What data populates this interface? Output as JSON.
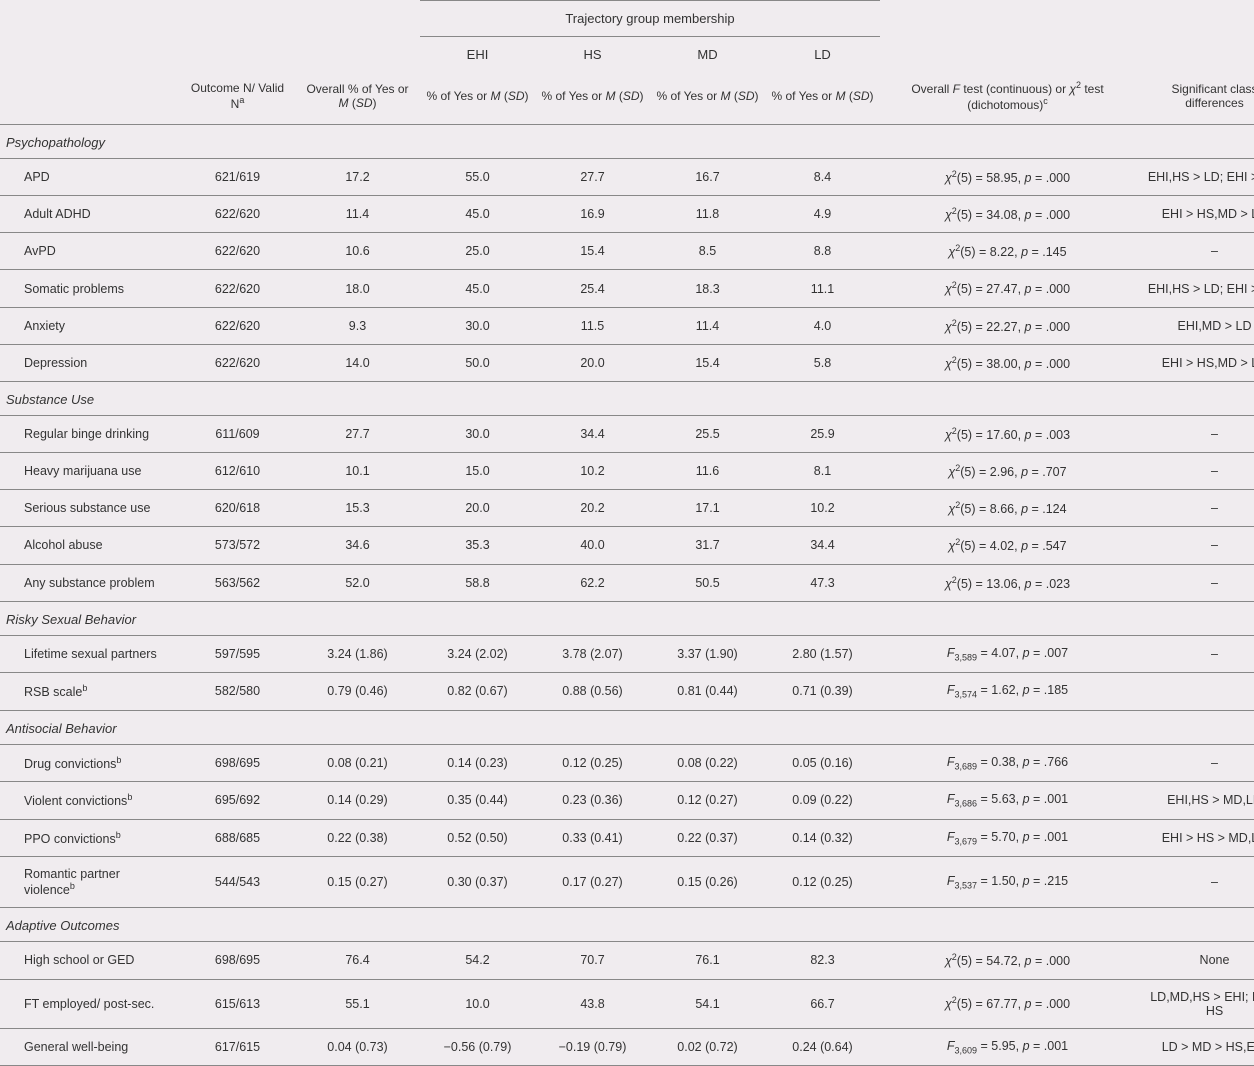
{
  "type": "table",
  "background_color": "#f0ecef",
  "border_color": "#888888",
  "text_color": "#333333",
  "font": {
    "family": "Arial, Helvetica, sans-serif",
    "base_size": 13
  },
  "columns": {
    "label": "",
    "n": "Outcome N/ Valid N",
    "n_sup": "a",
    "overall": "Overall % of Yes or ",
    "overall_m": "M",
    "overall_sd": "SD",
    "group_banner": "Trajectory group membership",
    "groups": [
      "EHI",
      "HS",
      "MD",
      "LD"
    ],
    "group_sub_pre": "% of Yes or ",
    "group_sub_m": "M",
    "group_sub_sd": "SD",
    "test_pre": "Overall ",
    "test_f": "F",
    "test_mid": " test (continuous) or ",
    "test_chi": "χ",
    "test_post": " test (dichotomous)",
    "test_sup": "c",
    "sig": "Significant class differences"
  },
  "sections": [
    {
      "name": "Psychopathology",
      "rows": [
        {
          "label": "APD",
          "n": "621/619",
          "overall": "17.2",
          "g": [
            "55.0",
            "27.7",
            "16.7",
            "8.4"
          ],
          "test_type": "chi",
          "df": "5",
          "stat": "58.95",
          "p": ".000",
          "sig": "EHI,HS > LD;  EHI > MD"
        },
        {
          "label": "Adult ADHD",
          "n": "622/620",
          "overall": "11.4",
          "g": [
            "45.0",
            "16.9",
            "11.8",
            "4.9"
          ],
          "test_type": "chi",
          "df": "5",
          "stat": "34.08",
          "p": ".000",
          "sig": "EHI > HS,MD > LD"
        },
        {
          "label": "AvPD",
          "n": "622/620",
          "overall": "10.6",
          "g": [
            "25.0",
            "15.4",
            "8.5",
            "8.8"
          ],
          "test_type": "chi",
          "df": "5",
          "stat": "8.22",
          "p": ".145",
          "sig": "–"
        },
        {
          "label": "Somatic problems",
          "n": "622/620",
          "overall": "18.0",
          "g": [
            "45.0",
            "25.4",
            "18.3",
            "11.1"
          ],
          "test_type": "chi",
          "df": "5",
          "stat": "27.47",
          "p": ".000",
          "sig": "EHI,HS > LD;  EHI > MD"
        },
        {
          "label": "Anxiety",
          "n": "622/620",
          "overall": "9.3",
          "g": [
            "30.0",
            "11.5",
            "11.4",
            "4.0"
          ],
          "test_type": "chi",
          "df": "5",
          "stat": "22.27",
          "p": ".000",
          "sig": "EHI,MD > LD"
        },
        {
          "label": "Depression",
          "n": "622/620",
          "overall": "14.0",
          "g": [
            "50.0",
            "20.0",
            "15.4",
            "5.8"
          ],
          "test_type": "chi",
          "df": "5",
          "stat": "38.00",
          "p": ".000",
          "sig": "EHI > HS,MD > LD"
        }
      ]
    },
    {
      "name": "Substance Use",
      "rows": [
        {
          "label": "Regular binge drinking",
          "n": "611/609",
          "overall": "27.7",
          "g": [
            "30.0",
            "34.4",
            "25.5",
            "25.9"
          ],
          "test_type": "chi",
          "df": "5",
          "stat": "17.60",
          "p": ".003",
          "sig": "–"
        },
        {
          "label": "Heavy marijuana use",
          "n": "612/610",
          "overall": "10.1",
          "g": [
            "15.0",
            "10.2",
            "11.6",
            "8.1"
          ],
          "test_type": "chi",
          "df": "5",
          "stat": "2.96",
          "p": ".707",
          "sig": "–"
        },
        {
          "label": "Serious substance use",
          "n": "620/618",
          "overall": "15.3",
          "g": [
            "20.0",
            "20.2",
            "17.1",
            "10.2"
          ],
          "test_type": "chi",
          "df": "5",
          "stat": "8.66",
          "p": ".124",
          "sig": "–"
        },
        {
          "label": "Alcohol abuse",
          "n": "573/572",
          "overall": "34.6",
          "g": [
            "35.3",
            "40.0",
            "31.7",
            "34.4"
          ],
          "test_type": "chi",
          "df": "5",
          "stat": "4.02",
          "p": ".547",
          "sig": "–"
        },
        {
          "label": "Any substance problem",
          "n": "563/562",
          "overall": "52.0",
          "g": [
            "58.8",
            "62.2",
            "50.5",
            "47.3"
          ],
          "test_type": "chi",
          "df": "5",
          "stat": "13.06",
          "p": ".023",
          "sig": "–"
        }
      ]
    },
    {
      "name": "Risky Sexual Behavior",
      "rows": [
        {
          "label": "Lifetime sexual partners",
          "n": "597/595",
          "overall": "3.24 (1.86)",
          "g": [
            "3.24 (2.02)",
            "3.78 (2.07)",
            "3.37 (1.90)",
            "2.80 (1.57)"
          ],
          "test_type": "F",
          "df": "3,589",
          "stat": "4.07",
          "p": ".007",
          "sig": "–"
        },
        {
          "label": "RSB scale",
          "label_sup": "b",
          "n": "582/580",
          "overall": "0.79 (0.46)",
          "g": [
            "0.82 (0.67)",
            "0.88 (0.56)",
            "0.81 (0.44)",
            "0.71 (0.39)"
          ],
          "test_type": "F",
          "df": "3,574",
          "stat": "1.62",
          "p": ".185",
          "sig": ""
        }
      ]
    },
    {
      "name": "Antisocial Behavior",
      "rows": [
        {
          "label": "Drug convictions",
          "label_sup": "b",
          "n": "698/695",
          "overall": "0.08 (0.21)",
          "g": [
            "0.14 (0.23)",
            "0.12 (0.25)",
            "0.08 (0.22)",
            "0.05 (0.16)"
          ],
          "test_type": "F",
          "df": "3,689",
          "stat": "0.38",
          "p": ".766",
          "sig": "–"
        },
        {
          "label": "Violent convictions",
          "label_sup": "b",
          "n": "695/692",
          "overall": "0.14 (0.29)",
          "g": [
            "0.35 (0.44)",
            "0.23 (0.36)",
            "0.12 (0.27)",
            "0.09 (0.22)"
          ],
          "test_type": "F",
          "df": "3,686",
          "stat": "5.63",
          "p": ".001",
          "sig": "EHI,HS > MD,LD"
        },
        {
          "label": "PPO convictions",
          "label_sup": "b",
          "n": "688/685",
          "overall": "0.22 (0.38)",
          "g": [
            "0.52 (0.50)",
            "0.33 (0.41)",
            "0.22 (0.37)",
            "0.14 (0.32)"
          ],
          "test_type": "F",
          "df": "3,679",
          "stat": "5.70",
          "p": ".001",
          "sig": "EHI > HS > MD,LD"
        },
        {
          "label": "Romantic partner violence",
          "label_sup": "b",
          "n": "544/543",
          "overall": "0.15 (0.27)",
          "g": [
            "0.30 (0.37)",
            "0.17 (0.27)",
            "0.15 (0.26)",
            "0.12 (0.25)"
          ],
          "test_type": "F",
          "df": "3,537",
          "stat": "1.50",
          "p": ".215",
          "sig": "–"
        }
      ]
    },
    {
      "name": "Adaptive Outcomes",
      "rows": [
        {
          "label": "High school or GED",
          "n": "698/695",
          "overall": "76.4",
          "g": [
            "54.2",
            "70.7",
            "76.1",
            "82.3"
          ],
          "test_type": "chi",
          "df": "5",
          "stat": "54.72",
          "p": ".000",
          "sig": "None"
        },
        {
          "label": "FT employed/ post-sec.",
          "n": "615/613",
          "overall": "55.1",
          "g": [
            "10.0",
            "43.8",
            "54.1",
            "66.7"
          ],
          "test_type": "chi",
          "df": "5",
          "stat": "67.77",
          "p": ".000",
          "sig": "LD,MD,HS > EHI; LD > HS"
        },
        {
          "label": "General well-being",
          "n": "617/615",
          "overall": "0.04 (0.73)",
          "g": [
            "−0.56 (0.79)",
            "−0.19 (0.79)",
            "0.02 (0.72)",
            "0.24 (0.64)"
          ],
          "test_type": "F",
          "df": "3,609",
          "stat": "5.95",
          "p": ".001",
          "sig": "LD > MD > HS,EHI"
        }
      ]
    }
  ]
}
